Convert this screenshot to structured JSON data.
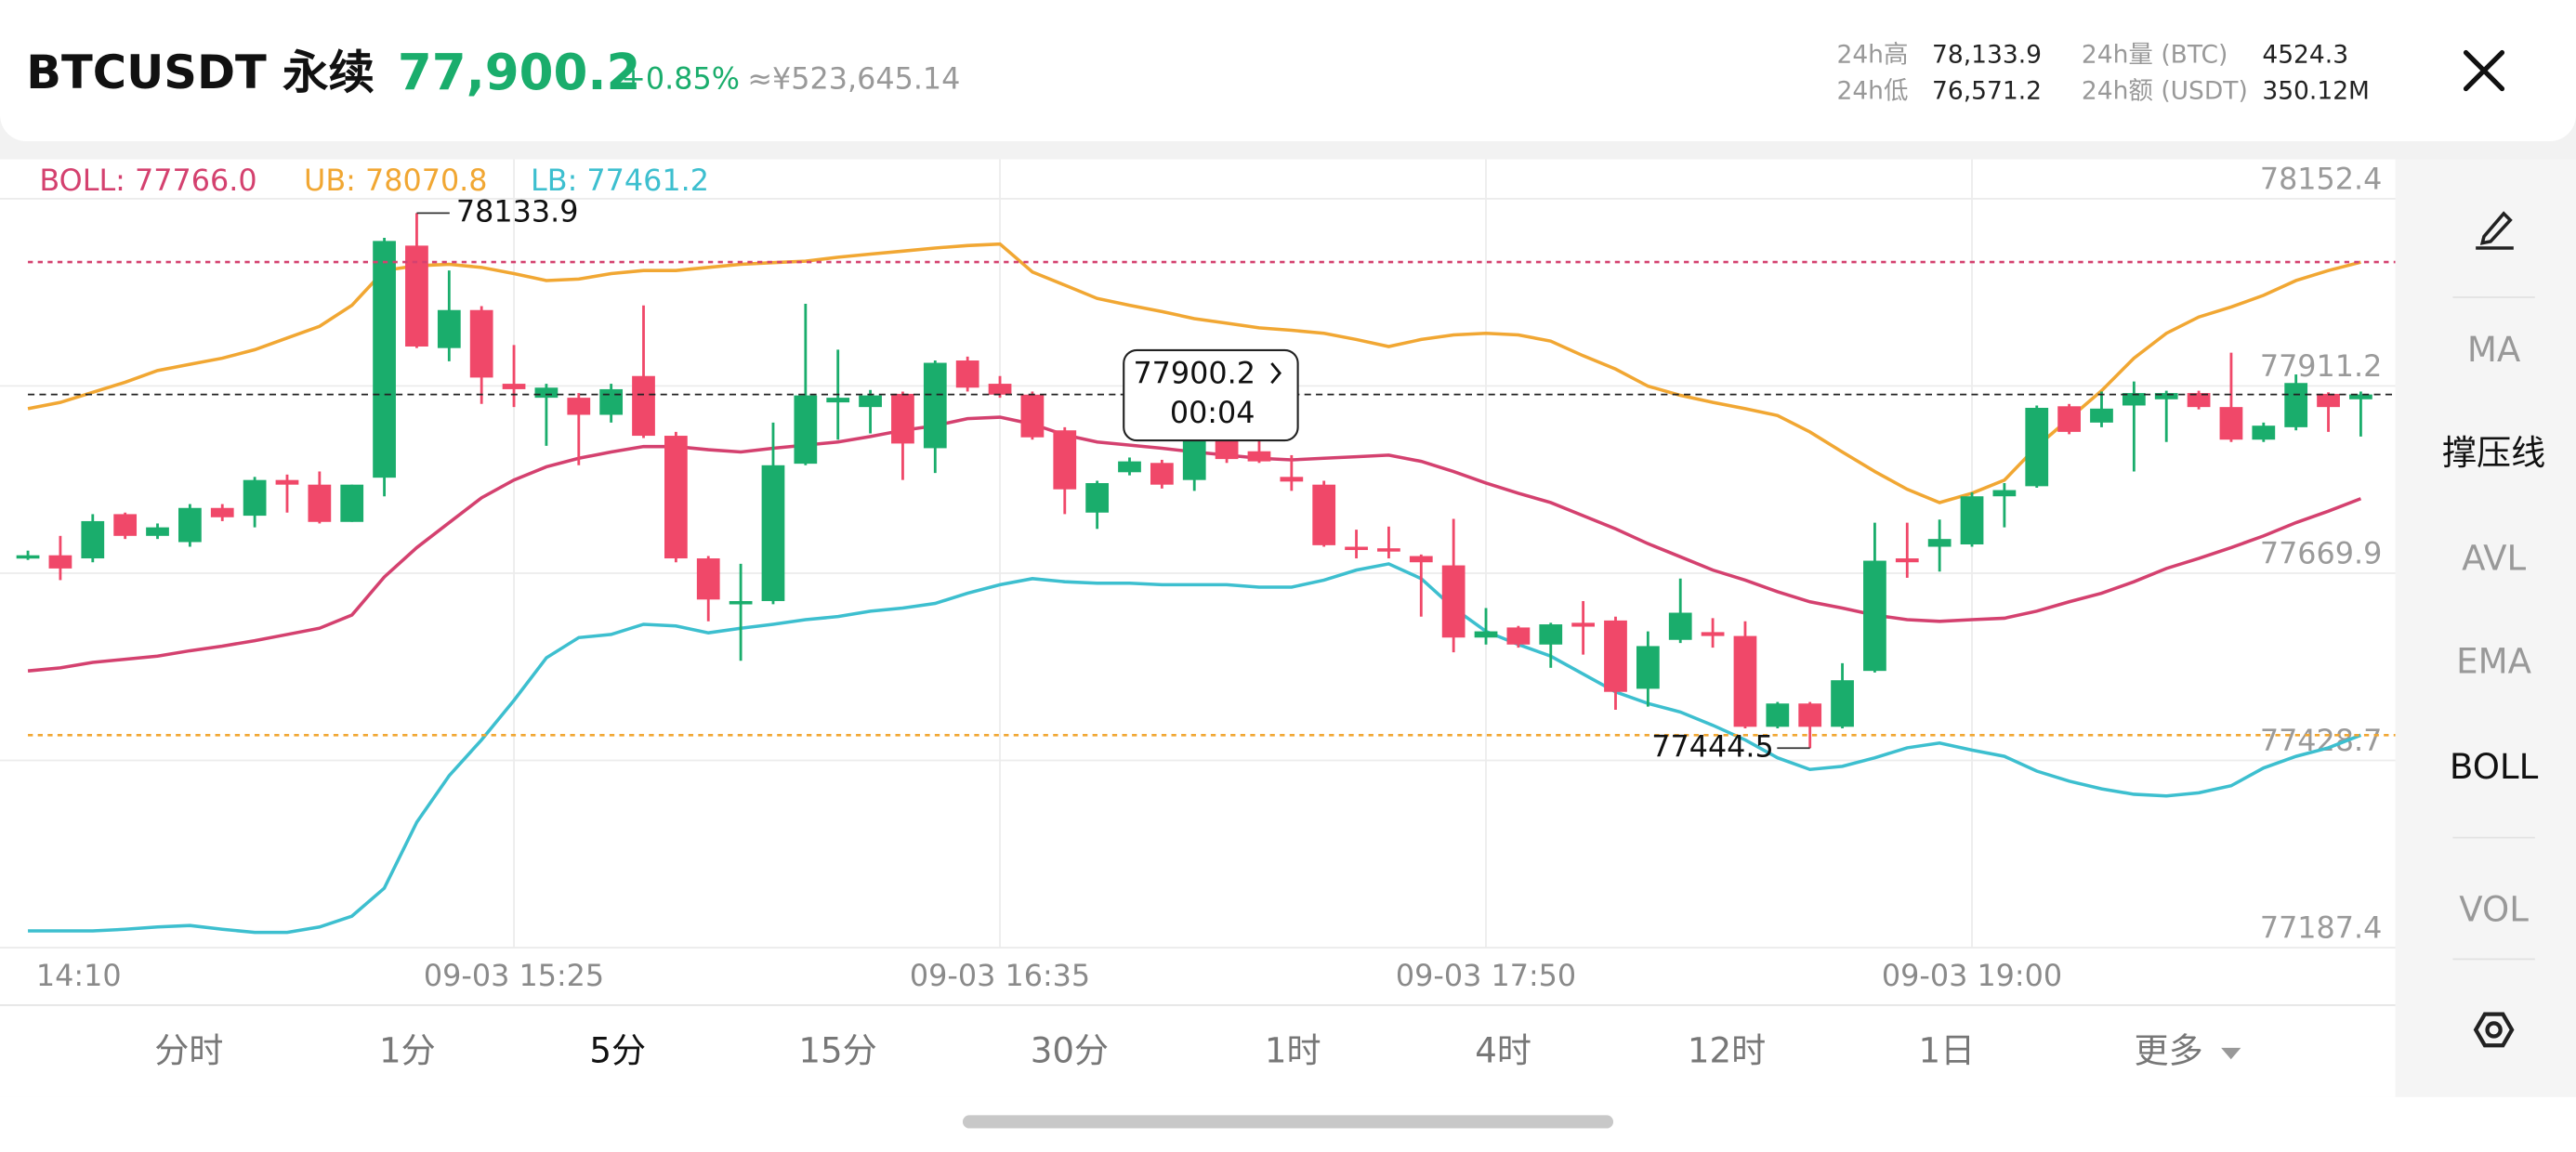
{
  "header": {
    "symbol": "BTCUSDT 永续",
    "price": "77,900.2",
    "change": "+0.85%",
    "cny": "≈¥523,645.14",
    "stats": [
      {
        "label": "24h高",
        "value": "78,133.9"
      },
      {
        "label": "24h低",
        "value": "76,571.2"
      },
      {
        "label": "24h量 (BTC)",
        "value": "4524.3"
      },
      {
        "label": "24h额 (USDT)",
        "value": "350.12M"
      }
    ]
  },
  "chart_data": {
    "type": "candlestick",
    "categories": [
      "14:10",
      null,
      null,
      null,
      null,
      null,
      null,
      null,
      null,
      null,
      null,
      null,
      null,
      null,
      null,
      "09-03 15:25",
      null,
      null,
      null,
      null,
      null,
      null,
      null,
      null,
      null,
      null,
      null,
      null,
      null,
      null,
      "09-03 16:35",
      null,
      null,
      null,
      null,
      null,
      null,
      null,
      null,
      null,
      null,
      null,
      null,
      null,
      null,
      "09-03 17:50",
      null,
      null,
      null,
      null,
      null,
      null,
      null,
      null,
      null,
      null,
      null,
      null,
      null,
      null,
      "09-03 19:00",
      null,
      null,
      null,
      null,
      null,
      null,
      null,
      null,
      null,
      null,
      null,
      null
    ],
    "open": [
      77693,
      77693,
      77689,
      77746,
      77718,
      77710,
      77754,
      77744,
      77790,
      77784,
      77736,
      77793,
      78092,
      77960,
      78009,
      77914,
      77896,
      77896,
      77874,
      77924,
      77847,
      77689,
      77630,
      77634,
      77811,
      77890,
      77884,
      77901,
      77831,
      77944,
      77914,
      77900,
      77854,
      77748,
      77800,
      77812,
      77790,
      77841,
      77827,
      77794,
      77784,
      77704,
      77702,
      77692,
      77680,
      77587,
      77600,
      77578,
      77606,
      77609,
      77521,
      77584,
      77594,
      77589,
      77472,
      77502,
      77472,
      77544,
      77689,
      77704,
      77707,
      77769,
      77782,
      77885,
      77864,
      77886,
      77894,
      77902,
      77884,
      77842,
      77858,
      77901,
      77894
    ],
    "high": [
      77699,
      77718,
      77746,
      77748,
      77734,
      77759,
      77759,
      77794,
      77797,
      77801,
      77784,
      78102,
      78133.9,
      78060,
      78014,
      77964,
      77914,
      77902,
      77914,
      78015,
      77852,
      77692,
      77682,
      77864,
      78017,
      77958,
      77906,
      77904,
      77944,
      77949,
      77924,
      77904,
      77858,
      77789,
      77819,
      77816,
      77874,
      77869,
      77857,
      77822,
      77789,
      77726,
      77730,
      77694,
      77740,
      77625,
      77602,
      77606,
      77634,
      77614,
      77595,
      77663,
      77612,
      77608,
      77504,
      77504,
      77554,
      77735,
      77735,
      77739,
      77774,
      77786,
      77886,
      77888,
      77904,
      77917,
      77905,
      77905,
      77954,
      77864,
      77926,
      77903,
      77904
    ],
    "low": [
      77687,
      77661,
      77684,
      77714,
      77714,
      77704,
      77737,
      77729,
      77748,
      77734,
      77736,
      77769,
      77960,
      77943,
      77888,
      77884,
      77834,
      77809,
      77864,
      77844,
      77684,
      77608,
      77557,
      77630,
      77809,
      77842,
      77850,
      77790,
      77799,
      77904,
      77896,
      77842,
      77746,
      77727,
      77796,
      77779,
      77776,
      77812,
      77812,
      77776,
      77704,
      77689,
      77689,
      77614,
      77568,
      77578,
      77574,
      77548,
      77565,
      77494,
      77498,
      77580,
      77574,
      77470,
      77470,
      77444.5,
      77470,
      77542,
      77664,
      77672,
      77704,
      77729,
      77780,
      77849,
      77858,
      77801,
      77839,
      77881,
      77839,
      77839,
      77854,
      77852,
      77846
    ],
    "close": [
      77693,
      77676,
      77737,
      77718,
      77729,
      77754,
      77742,
      77790,
      77784,
      77736,
      77784,
      78098,
      77962,
      78009,
      77922,
      77907,
      77909,
      77874,
      77907,
      77847,
      77689,
      77636,
      77634,
      77809,
      77899,
      77896,
      77899,
      77837,
      77941,
      77909,
      77900,
      77845,
      77778,
      77786,
      77814,
      77784,
      77854,
      77817,
      77814,
      77788,
      77706,
      77700,
      77698,
      77684,
      77587,
      77595,
      77578,
      77604,
      77601,
      77517,
      77576,
      77619,
      77589,
      77472,
      77502,
      77472,
      77532,
      77686,
      77684,
      77714,
      77769,
      77777,
      77883,
      77852,
      77882,
      77902,
      77902,
      77884,
      77842,
      77860,
      77915,
      77884,
      77900.2
    ],
    "colors": {
      "up": "#1aad6c",
      "down": "#f04869"
    },
    "series": [
      {
        "name": "BOLL: 77766.0",
        "color": "#d4416f",
        "values": [
          77544,
          77548,
          77555,
          77559,
          77563,
          77570,
          77576,
          77583,
          77591,
          77599,
          77616,
          77665,
          77703,
          77735,
          77767,
          77790,
          77807,
          77818,
          77826,
          77833,
          77833,
          77829,
          77826,
          77831,
          77835,
          77839,
          77846,
          77854,
          77860,
          77869,
          77871,
          77862,
          77848,
          77839,
          77835,
          77831,
          77826,
          77822,
          77818,
          77816,
          77818,
          77820,
          77822,
          77814,
          77801,
          77786,
          77773,
          77761,
          77744,
          77727,
          77708,
          77691,
          77674,
          77661,
          77646,
          77633,
          77625,
          77616,
          77610,
          77608,
          77610,
          77612,
          77621,
          77633,
          77644,
          77659,
          77676,
          77689,
          77703,
          77718,
          77735,
          77750,
          77766
        ]
      },
      {
        "name": "UB: 78070.8",
        "color": "#f1a733",
        "values": [
          77882,
          77890,
          77903,
          77916,
          77931,
          77939,
          77947,
          77958,
          77973,
          77988,
          78015,
          78060,
          78066,
          78068,
          78064,
          78056,
          78047,
          78049,
          78056,
          78060,
          78060,
          78064,
          78068,
          78070,
          78072,
          78077,
          78081,
          78085,
          78089,
          78092,
          78094,
          78058,
          78041,
          78024,
          78015,
          78007,
          77998,
          77992,
          77986,
          77983,
          77979,
          77971,
          77962,
          77971,
          77977,
          77979,
          77977,
          77969,
          77950,
          77933,
          77911,
          77899,
          77890,
          77882,
          77873,
          77852,
          77826,
          77801,
          77778,
          77761,
          77773,
          77790,
          77833,
          77869,
          77905,
          77947,
          77979,
          78000,
          78013,
          78028,
          78047,
          78060,
          78070.8
        ]
      },
      {
        "name": "LB: 77461.2",
        "color": "#3dbfcf",
        "values": [
          77209,
          77209,
          77209,
          77211,
          77214,
          77216,
          77211,
          77207,
          77207,
          77214,
          77228,
          77264,
          77349,
          77409,
          77455,
          77506,
          77561,
          77587,
          77591,
          77604,
          77602,
          77593,
          77599,
          77604,
          77610,
          77614,
          77621,
          77625,
          77631,
          77644,
          77655,
          77663,
          77659,
          77657,
          77657,
          77655,
          77655,
          77655,
          77652,
          77652,
          77661,
          77674,
          77682,
          77663,
          77625,
          77595,
          77578,
          77563,
          77540,
          77517,
          77502,
          77491,
          77474,
          77455,
          77432,
          77417,
          77421,
          77432,
          77445,
          77451,
          77442,
          77434,
          77415,
          77402,
          77392,
          77385,
          77383,
          77387,
          77396,
          77419,
          77434,
          77445,
          77461.2
        ]
      }
    ],
    "ylim": [
      77187.4,
      78203.2
    ],
    "yticks": [
      77187.4,
      77428.7,
      77669.9,
      77911.2,
      78152.4
    ],
    "grid": true,
    "last_price": 77900.2,
    "countdown": "00:04"
  },
  "indicators": [
    {
      "label": "MA",
      "active": false
    },
    {
      "label": "撑压线",
      "active": true
    },
    {
      "label": "AVL",
      "active": false
    },
    {
      "label": "EMA",
      "active": false
    },
    {
      "label": "BOLL",
      "active": true
    },
    {
      "label": "VOL",
      "active": false
    }
  ],
  "timeframes": {
    "items": [
      "分时",
      "1分",
      "5分",
      "15分",
      "30分",
      "1时",
      "4时",
      "12时",
      "1日",
      "更多"
    ],
    "selected": 2
  }
}
